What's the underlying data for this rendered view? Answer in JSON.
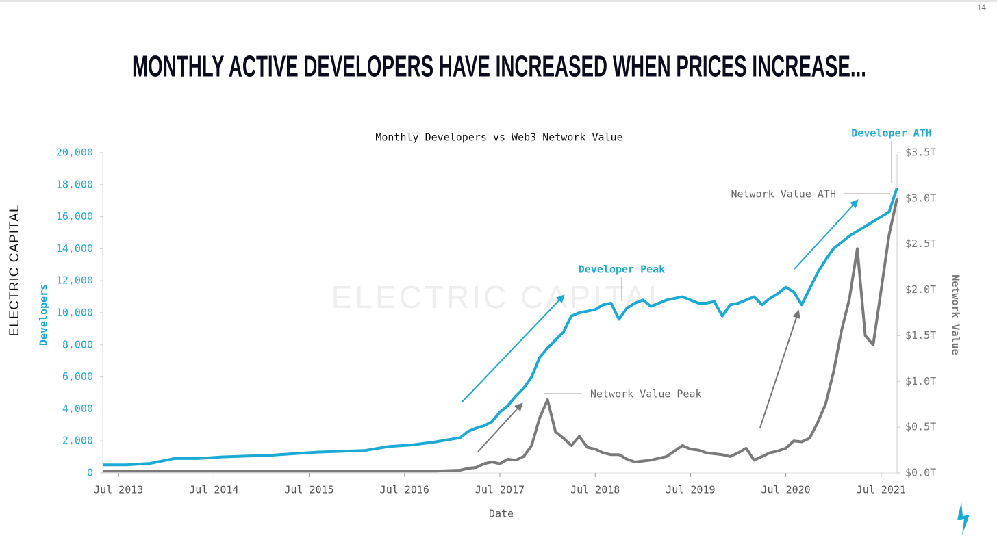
{
  "slide": {
    "title": "MONTHLY ACTIVE DEVELOPERS HAVE INCREASED WHEN PRICES INCREASE...",
    "page_number": "14",
    "logo": "ELECTRIC CAPITAL"
  },
  "chart_data": {
    "type": "line",
    "title": "Monthly Developers vs Web3 Network Value",
    "xlabel": "Date",
    "ylabel": "Developers",
    "y2label": "Network Value",
    "x": [
      "2013-05",
      "2013-08",
      "2013-11",
      "2014-02",
      "2014-05",
      "2014-08",
      "2014-11",
      "2015-02",
      "2015-05",
      "2015-08",
      "2015-11",
      "2016-02",
      "2016-05",
      "2016-08",
      "2016-11",
      "2017-02",
      "2017-03",
      "2017-04",
      "2017-05",
      "2017-06",
      "2017-07",
      "2017-08",
      "2017-09",
      "2017-10",
      "2017-11",
      "2017-12",
      "2018-01",
      "2018-02",
      "2018-03",
      "2018-04",
      "2018-05",
      "2018-06",
      "2018-07",
      "2018-08",
      "2018-09",
      "2018-10",
      "2018-11",
      "2018-12",
      "2019-01",
      "2019-02",
      "2019-03",
      "2019-04",
      "2019-05",
      "2019-06",
      "2019-07",
      "2019-08",
      "2019-09",
      "2019-10",
      "2019-11",
      "2019-12",
      "2020-01",
      "2020-02",
      "2020-03",
      "2020-04",
      "2020-05",
      "2020-06",
      "2020-07",
      "2020-08",
      "2020-09",
      "2020-10",
      "2020-11",
      "2020-12",
      "2021-01",
      "2021-02",
      "2021-03",
      "2021-04",
      "2021-05",
      "2021-06",
      "2021-07",
      "2021-08",
      "2021-09"
    ],
    "xlim": [
      "2013-05",
      "2021-09"
    ],
    "xticks": [
      {
        "value": "2013-07",
        "label": "Jul 2013"
      },
      {
        "value": "2014-07",
        "label": "Jul 2014"
      },
      {
        "value": "2015-07",
        "label": "Jul 2015"
      },
      {
        "value": "2016-07",
        "label": "Jul 2016"
      },
      {
        "value": "2017-07",
        "label": "Jul 2017"
      },
      {
        "value": "2018-07",
        "label": "Jul 2018"
      },
      {
        "value": "2019-07",
        "label": "Jul 2019"
      },
      {
        "value": "2020-07",
        "label": "Jul 2020"
      },
      {
        "value": "2021-07",
        "label": "Jul 2021"
      }
    ],
    "ylim": [
      0,
      20000
    ],
    "yticks": [
      0,
      {
        "value": 2000,
        "label": "2,000"
      },
      {
        "value": 4000,
        "label": "4,000"
      },
      {
        "value": 6000,
        "label": "6,000"
      },
      {
        "value": 8000,
        "label": "8,000"
      },
      {
        "value": 10000,
        "label": "10,000"
      },
      {
        "value": 12000,
        "label": "12,000"
      },
      {
        "value": 14000,
        "label": "14,000"
      },
      {
        "value": 16000,
        "label": "16,000"
      },
      {
        "value": 18000,
        "label": "18,000"
      },
      {
        "value": 20000,
        "label": "20,000"
      }
    ],
    "y2lim": [
      0,
      3.5
    ],
    "y2ticks": [
      {
        "value": 0,
        "label": "$0.0T"
      },
      {
        "value": 0.5,
        "label": "$0.5T"
      },
      {
        "value": 1,
        "label": "$1.0T"
      },
      {
        "value": 1.5,
        "label": "$1.5T"
      },
      {
        "value": 2,
        "label": "$2.0T"
      },
      {
        "value": 2.5,
        "label": "$2.5T"
      },
      {
        "value": 3,
        "label": "$3.0T"
      },
      {
        "value": 3.5,
        "label": "$3.5T"
      }
    ],
    "series": [
      {
        "name": "Developers",
        "color": "#1ba9d6",
        "values": [
          500,
          500,
          600,
          900,
          900,
          1000,
          1050,
          1100,
          1200,
          1300,
          1350,
          1400,
          1650,
          1750,
          1950,
          2200,
          2600,
          2800,
          2950,
          3200,
          3800,
          4200,
          4800,
          5300,
          6000,
          7200,
          7800,
          8300,
          8800,
          9800,
          10000,
          10100,
          10200,
          10500,
          10600,
          9600,
          10300,
          10600,
          10800,
          10400,
          10600,
          10800,
          10900,
          11000,
          10800,
          10600,
          10600,
          10700,
          9800,
          10500,
          10600,
          10800,
          11000,
          10500,
          10900,
          11200,
          11600,
          11300,
          10500,
          11500,
          12500,
          13300,
          14000,
          14400,
          14800,
          15100,
          15400,
          15700,
          16000,
          16300,
          17800
        ]
      },
      {
        "name": "Network Value",
        "color": "#7a7a7a",
        "axis": "y2",
        "values": [
          0.02,
          0.02,
          0.02,
          0.02,
          0.02,
          0.02,
          0.02,
          0.02,
          0.02,
          0.02,
          0.02,
          0.02,
          0.02,
          0.02,
          0.02,
          0.03,
          0.05,
          0.06,
          0.1,
          0.12,
          0.1,
          0.15,
          0.14,
          0.18,
          0.3,
          0.6,
          0.8,
          0.45,
          0.38,
          0.3,
          0.4,
          0.28,
          0.26,
          0.22,
          0.2,
          0.2,
          0.15,
          0.12,
          0.13,
          0.14,
          0.16,
          0.18,
          0.24,
          0.3,
          0.26,
          0.25,
          0.22,
          0.21,
          0.2,
          0.18,
          0.22,
          0.27,
          0.14,
          0.18,
          0.22,
          0.24,
          0.27,
          0.35,
          0.34,
          0.38,
          0.55,
          0.75,
          1.1,
          1.55,
          1.9,
          2.45,
          1.5,
          1.4,
          2.0,
          2.6,
          3.0
        ]
      }
    ],
    "annotations": [
      "Developer ATH",
      "Network Value ATH",
      "Developer Peak",
      "Network Value Peak"
    ]
  }
}
